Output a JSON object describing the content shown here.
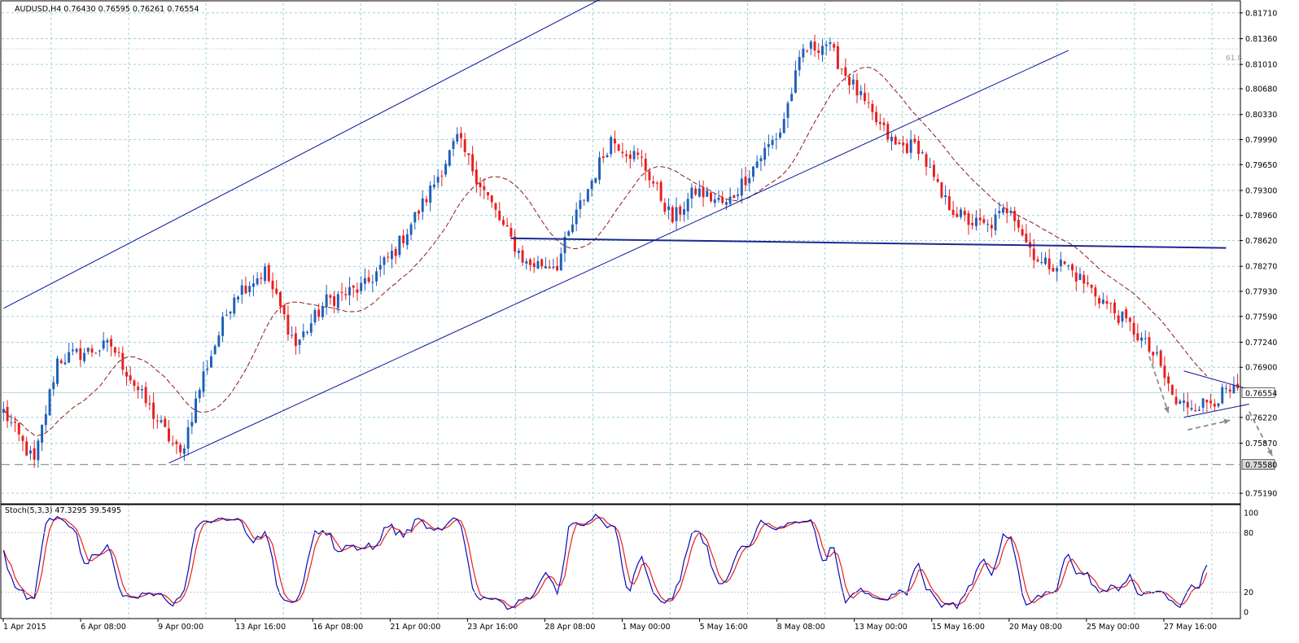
{
  "header": {
    "title": "AUDUSD,H4  0.76430 0.76595 0.76261 0.76554",
    "stoch_label": "Stoch(5,3,3) 47.3295 39.5495"
  },
  "colors": {
    "bull": "#1f5fb8",
    "bear": "#e81e1e",
    "grid": "#9cd2dc",
    "ma": "#8b1a1a",
    "trendline": "#0d0d9c",
    "stoch_k": "#0a0ab4",
    "stoch_d": "#e81e1e"
  },
  "chart_data": [
    {
      "type": "candlestick",
      "symbol": "AUDUSD",
      "timeframe": "H4",
      "ohlc_last": {
        "open": 0.7643,
        "high": 0.76595,
        "low": 0.76261,
        "close": 0.76554
      },
      "y_ticks": [
        "0.81710",
        "0.81360",
        "0.81010",
        "0.80680",
        "0.80330",
        "0.79990",
        "0.79650",
        "0.79300",
        "0.78960",
        "0.78620",
        "0.78270",
        "0.77930",
        "0.77590",
        "0.77240",
        "0.76900",
        "0.76220",
        "0.75870",
        "0.75190"
      ],
      "ylim": [
        0.7508,
        0.8184
      ],
      "x_ticks": [
        "1 Apr 2015",
        "6 Apr 08:00",
        "9 Apr 00:00",
        "13 Apr 16:00",
        "16 Apr 08:00",
        "21 Apr 00:00",
        "23 Apr 16:00",
        "28 Apr 08:00",
        "1 May 00:00",
        "5 May 16:00",
        "8 May 08:00",
        "13 May 00:00",
        "15 May 16:00",
        "20 May 08:00",
        "25 May 00:00",
        "27 May 16:00"
      ],
      "current_price_label": "0.76554",
      "support_label": "0.75580",
      "fib_label": "61.8",
      "anchors": [
        [
          0,
          0.763
        ],
        [
          8,
          0.756
        ],
        [
          14,
          0.77
        ],
        [
          28,
          0.772
        ],
        [
          36,
          0.765
        ],
        [
          46,
          0.757
        ],
        [
          52,
          0.768
        ],
        [
          60,
          0.779
        ],
        [
          68,
          0.782
        ],
        [
          76,
          0.772
        ],
        [
          84,
          0.778
        ],
        [
          94,
          0.78
        ],
        [
          102,
          0.785
        ],
        [
          110,
          0.792
        ],
        [
          118,
          0.8
        ],
        [
          124,
          0.794
        ],
        [
          130,
          0.788
        ],
        [
          136,
          0.783
        ],
        [
          144,
          0.783
        ],
        [
          150,
          0.791
        ],
        [
          158,
          0.8
        ],
        [
          166,
          0.797
        ],
        [
          174,
          0.789
        ],
        [
          180,
          0.793
        ],
        [
          188,
          0.791
        ],
        [
          196,
          0.797
        ],
        [
          202,
          0.801
        ],
        [
          208,
          0.812
        ],
        [
          214,
          0.813
        ],
        [
          220,
          0.808
        ],
        [
          226,
          0.803
        ],
        [
          232,
          0.799
        ],
        [
          238,
          0.799
        ],
        [
          244,
          0.792
        ],
        [
          250,
          0.789
        ],
        [
          256,
          0.788
        ],
        [
          262,
          0.791
        ],
        [
          266,
          0.786
        ],
        [
          270,
          0.783
        ],
        [
          276,
          0.783
        ],
        [
          282,
          0.78
        ],
        [
          288,
          0.777
        ],
        [
          294,
          0.774
        ],
        [
          300,
          0.77
        ],
        [
          305,
          0.764
        ],
        [
          312,
          0.764
        ],
        [
          318,
          0.7655
        ]
      ],
      "ma_period": 21,
      "upper_channel": [
        [
          0.0,
          0.777
        ],
        [
          185.0,
          0.827
        ]
      ],
      "lower_channel": [
        [
          43.0,
          0.756
        ],
        [
          277.0,
          0.812
        ]
      ],
      "neckline": [
        [
          132.0,
          0.7865
        ],
        [
          318.0,
          0.7852
        ]
      ],
      "support_level": 0.7558,
      "fib_level": 0.8122,
      "pennant_upper": [
        [
          307.0,
          0.7685
        ],
        [
          324.0,
          0.766
        ]
      ],
      "pennant_lower": [
        [
          307.0,
          0.7622
        ],
        [
          324.0,
          0.764
        ]
      ]
    },
    {
      "type": "line",
      "name": "Stoch(5,3,3)",
      "ylim": [
        0,
        100
      ],
      "y_ticks": [
        "100",
        "80",
        "20",
        "0"
      ],
      "series": [
        {
          "name": "%K",
          "last": 47.3295
        },
        {
          "name": "%D",
          "last": 39.5495
        }
      ]
    }
  ]
}
